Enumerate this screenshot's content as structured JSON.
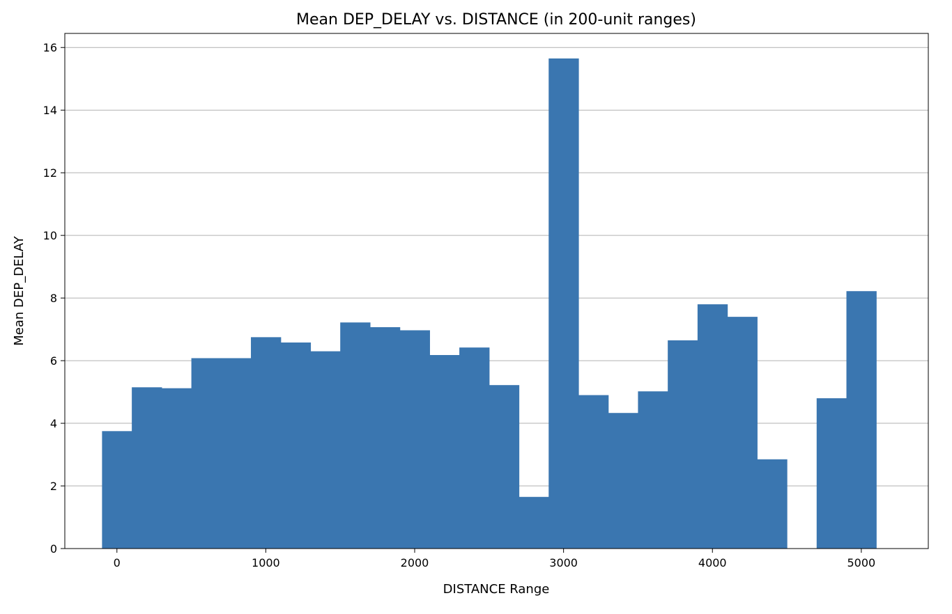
{
  "chart_data": {
    "type": "bar",
    "title": "Mean DEP_DELAY vs. DISTANCE (in 200-unit ranges)",
    "xlabel": "DISTANCE Range",
    "ylabel": "Mean DEP_DELAY",
    "bin_width": 200,
    "x": [
      0,
      200,
      400,
      600,
      800,
      1000,
      1200,
      1400,
      1600,
      1800,
      2000,
      2200,
      2400,
      2600,
      2800,
      3000,
      3200,
      3400,
      3600,
      3800,
      4000,
      4200,
      4400,
      4800,
      5000
    ],
    "values": [
      3.75,
      5.15,
      5.12,
      6.08,
      6.08,
      6.75,
      6.58,
      6.3,
      7.22,
      7.07,
      6.97,
      6.18,
      6.42,
      5.22,
      1.65,
      15.65,
      4.9,
      4.33,
      5.02,
      6.65,
      7.8,
      7.4,
      2.85,
      4.8,
      8.22
    ],
    "xlim": [
      -350,
      5450
    ],
    "ylim": [
      0,
      16.45
    ],
    "xticks": [
      0,
      1000,
      2000,
      3000,
      4000,
      5000
    ],
    "yticks": [
      0,
      2,
      4,
      6,
      8,
      10,
      12,
      14,
      16
    ],
    "grid": "y",
    "bar_color": "#3a76b0",
    "grid_color": "#b0b0b0"
  }
}
